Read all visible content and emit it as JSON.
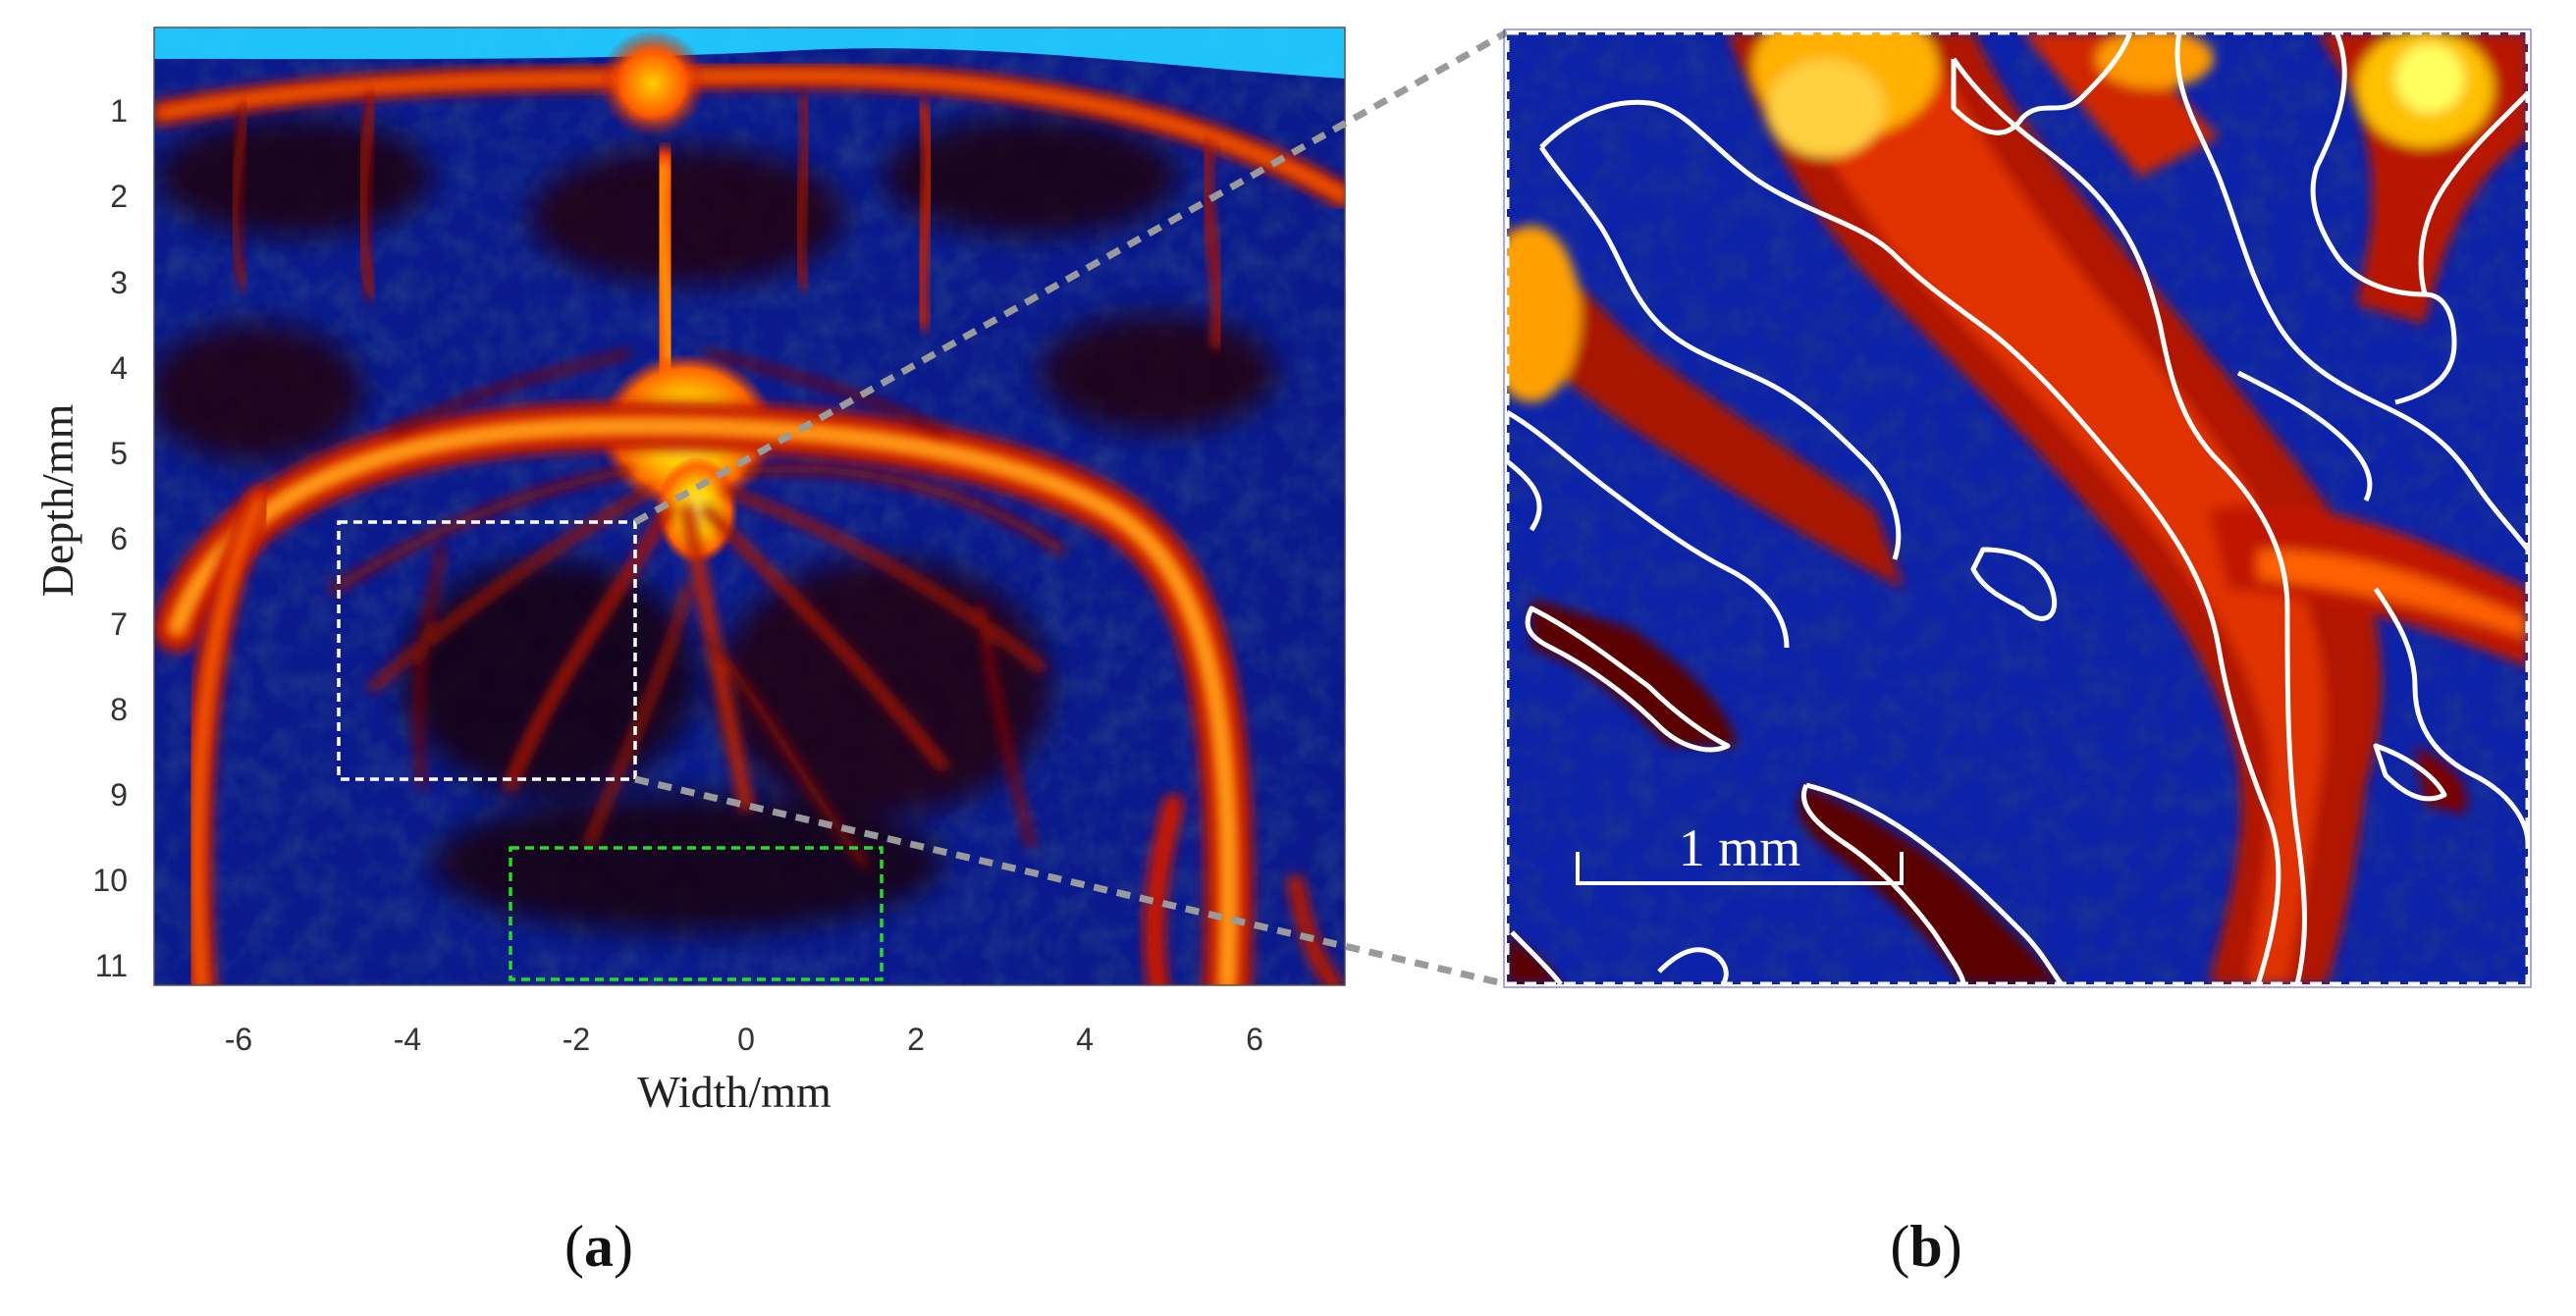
{
  "panel_a": {
    "x_axis_title": "Width/mm",
    "y_axis_title": "Depth/mm",
    "x_ticks": [
      "-6",
      "-4",
      "-2",
      "0",
      "2",
      "4",
      "6"
    ],
    "y_ticks": [
      "1",
      "2",
      "3",
      "4",
      "5",
      "6",
      "7",
      "8",
      "9",
      "10",
      "11"
    ],
    "roi_box_color": "#ffffff",
    "background_box_color": "#22dd22"
  },
  "panel_b": {
    "scale_bar_label": "1 mm",
    "contour_color": "#ffffff"
  },
  "labels": {
    "a": "a",
    "b": "b",
    "open": "(",
    "close": ")"
  },
  "colormap": {
    "background": "#0a1a8c",
    "vessel_dark": "#5a0000",
    "vessel_red": "#d02000",
    "vessel_orange": "#ff8000",
    "vessel_yellow": "#ffff40",
    "surface_cyan": "#20d0ff"
  },
  "connector_color": "#9a9a9a"
}
